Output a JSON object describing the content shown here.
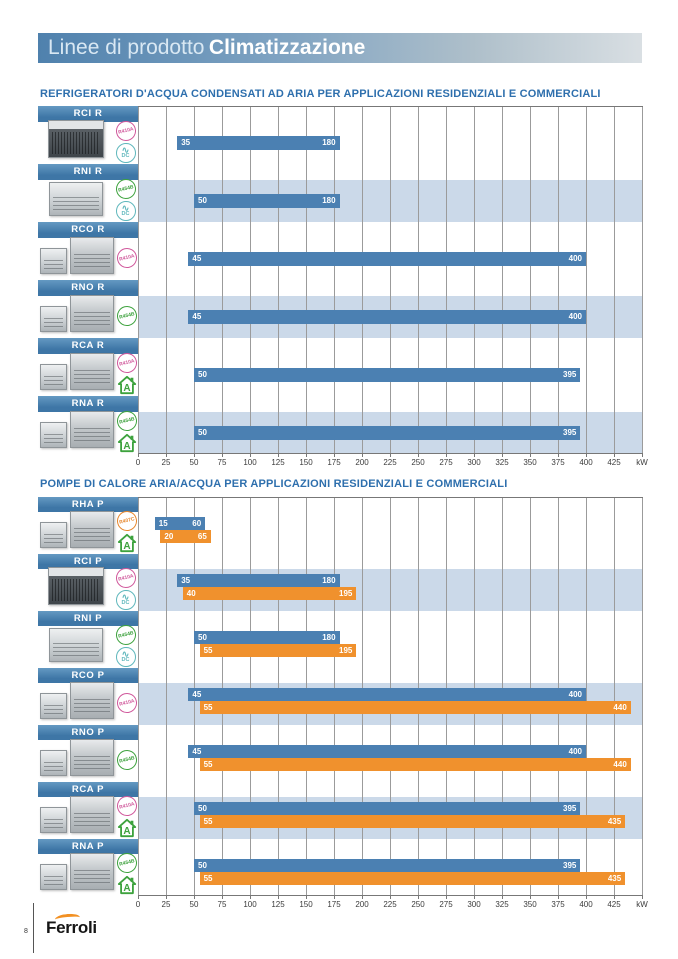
{
  "header": {
    "title_regular": "Linee di prodotto",
    "title_bold": "Climatizzazione"
  },
  "footer": {
    "page_number": "8",
    "brand": "Ferroli"
  },
  "colors": {
    "bar_blue": "#4b80b2",
    "bar_orange": "#f0912d",
    "row_band": "#cbd9e9",
    "name_bar": "#3e76a6",
    "section_title": "#2e6fad",
    "gridline": "#9b9b9b",
    "header_left": "#4f81ad",
    "badge_pink": "#d0579b",
    "badge_green": "#3da23d",
    "badge_orange": "#e6862c",
    "badge_teal": "#5fb7bc"
  },
  "axis": {
    "unit": "kW",
    "min": 0,
    "max": 450,
    "step": 25,
    "tick_labels": [
      "0",
      "25",
      "50",
      "75",
      "100",
      "125",
      "150",
      "175",
      "200",
      "225",
      "250",
      "275",
      "300",
      "325",
      "350",
      "375",
      "400",
      "425",
      "kW"
    ]
  },
  "chart_data": [
    {
      "type": "bar",
      "orientation": "horizontal-range",
      "title": "REFRIGERATORI D'ACQUA CONDENSATI AD ARIA PER APPLICAZIONI RESIDENZIALI E COMMERCIALI",
      "xlabel": "kW",
      "x_range": [
        0,
        450
      ],
      "grid": true,
      "rows": [
        {
          "name": "RCI R",
          "image": "single-dark",
          "badges": [
            {
              "kind": "refrigerant",
              "text": "R410A",
              "color": "pink"
            },
            {
              "kind": "inverter",
              "text": "DC",
              "color": "teal"
            }
          ],
          "blue": [
            35,
            180
          ]
        },
        {
          "name": "RNI R",
          "image": "single-light",
          "badges": [
            {
              "kind": "refrigerant",
              "text": "R454B",
              "color": "green"
            },
            {
              "kind": "inverter",
              "text": "DC",
              "color": "teal"
            }
          ],
          "blue": [
            50,
            180
          ]
        },
        {
          "name": "RCO R",
          "image": "double",
          "badges": [
            {
              "kind": "refrigerant",
              "text": "R410A",
              "color": "pink"
            }
          ],
          "blue": [
            45,
            400
          ]
        },
        {
          "name": "RNO R",
          "image": "double",
          "badges": [
            {
              "kind": "refrigerant",
              "text": "R454B",
              "color": "green"
            }
          ],
          "blue": [
            45,
            400
          ]
        },
        {
          "name": "RCA R",
          "image": "double",
          "badges": [
            {
              "kind": "refrigerant",
              "text": "R410A",
              "color": "pink"
            },
            {
              "kind": "energy-class",
              "text": "A",
              "color": "green"
            }
          ],
          "blue": [
            50,
            395
          ]
        },
        {
          "name": "RNA R",
          "image": "double",
          "badges": [
            {
              "kind": "refrigerant",
              "text": "R454B",
              "color": "green"
            },
            {
              "kind": "energy-class",
              "text": "A",
              "color": "green"
            }
          ],
          "blue": [
            50,
            395
          ]
        }
      ]
    },
    {
      "type": "bar",
      "orientation": "horizontal-range",
      "title": "POMPE DI CALORE ARIA/ACQUA PER APPLICAZIONI RESIDENZIALI E COMMERCIALI",
      "xlabel": "kW",
      "x_range": [
        0,
        450
      ],
      "grid": true,
      "rows": [
        {
          "name": "RHA P",
          "image": "double",
          "badges": [
            {
              "kind": "refrigerant",
              "text": "R407C",
              "color": "orange"
            },
            {
              "kind": "energy-class",
              "text": "A",
              "color": "green"
            }
          ],
          "blue": [
            15,
            60
          ],
          "orange": [
            20,
            65
          ]
        },
        {
          "name": "RCI P",
          "image": "single-dark",
          "badges": [
            {
              "kind": "refrigerant",
              "text": "R410A",
              "color": "pink"
            },
            {
              "kind": "inverter",
              "text": "DC",
              "color": "teal"
            }
          ],
          "blue": [
            35,
            180
          ],
          "orange": [
            40,
            195
          ]
        },
        {
          "name": "RNI P",
          "image": "single-light",
          "badges": [
            {
              "kind": "refrigerant",
              "text": "R454B",
              "color": "green"
            },
            {
              "kind": "inverter",
              "text": "DC",
              "color": "teal"
            }
          ],
          "blue": [
            50,
            180
          ],
          "orange": [
            55,
            195
          ]
        },
        {
          "name": "RCO P",
          "image": "double",
          "badges": [
            {
              "kind": "refrigerant",
              "text": "R410A",
              "color": "pink"
            }
          ],
          "blue": [
            45,
            400
          ],
          "orange": [
            55,
            440
          ]
        },
        {
          "name": "RNO P",
          "image": "double",
          "badges": [
            {
              "kind": "refrigerant",
              "text": "R454B",
              "color": "green"
            }
          ],
          "blue": [
            45,
            400
          ],
          "orange": [
            55,
            440
          ]
        },
        {
          "name": "RCA P",
          "image": "double",
          "badges": [
            {
              "kind": "refrigerant",
              "text": "R410A",
              "color": "pink"
            },
            {
              "kind": "energy-class",
              "text": "A",
              "color": "green"
            }
          ],
          "blue": [
            50,
            395
          ],
          "orange": [
            55,
            435
          ]
        },
        {
          "name": "RNA P",
          "image": "double",
          "badges": [
            {
              "kind": "refrigerant",
              "text": "R454B",
              "color": "green"
            },
            {
              "kind": "energy-class",
              "text": "A",
              "color": "green"
            }
          ],
          "blue": [
            50,
            395
          ],
          "orange": [
            55,
            435
          ]
        }
      ]
    }
  ]
}
